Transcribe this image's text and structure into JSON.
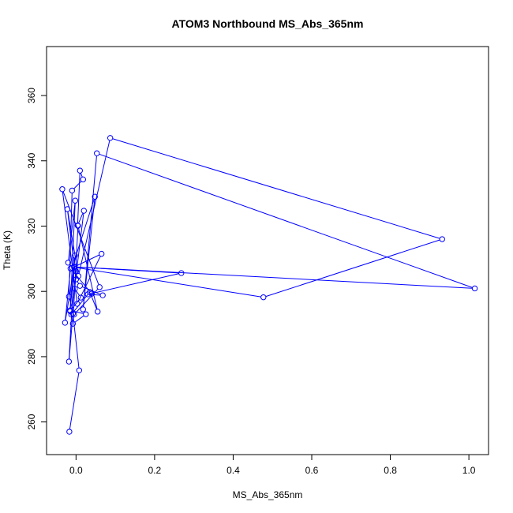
{
  "chart_data": {
    "type": "line",
    "title": "ATOM3 Northbound MS_Abs_365nm",
    "xlabel": "MS_Abs_365nm",
    "ylabel": "Theta (K)",
    "xlim": [
      -0.075,
      1.05
    ],
    "ylim": [
      250,
      375
    ],
    "xticks": [
      0.0,
      0.2,
      0.4,
      0.6,
      0.8,
      1.0
    ],
    "xtick_labels": [
      "0.0",
      "0.2",
      "0.4",
      "0.6",
      "0.8",
      "1.0"
    ],
    "yticks": [
      260,
      280,
      300,
      320,
      340,
      360
    ],
    "ytick_labels": [
      "260",
      "280",
      "300",
      "320",
      "340",
      "360"
    ],
    "grid": false,
    "marker": "open-circle",
    "series_color": "#0000ff",
    "series": [
      {
        "x": [
          -0.017,
          0.008,
          -0.008,
          -0.018,
          -0.003,
          -0.015,
          0.012,
          -0.003,
          0.0,
          -0.02,
          -0.002,
          -0.015,
          0.025,
          -0.008,
          0.005,
          0.055,
          0.035,
          -0.012,
          0.02,
          0.004,
          0.01,
          0.018,
          -0.01,
          -0.018,
          -0.005,
          0.06,
          -0.035,
          0.003,
          0.065,
          -0.01,
          0.048,
          0.018,
          0.053,
          1.015,
          -0.004,
          0.268,
          0.03,
          0.068,
          0.01,
          0.0,
          -0.022,
          0.006,
          0.087,
          0.932,
          0.477,
          -0.005,
          -0.028,
          -0.014,
          0.04
        ],
        "y": [
          257.0,
          275.8,
          293.2,
          278.5,
          311.0,
          293.9,
          298.1,
          300.8,
          306.2,
          308.8,
          327.8,
          294.2,
          293.0,
          290.1,
          320.1,
          293.8,
          299.8,
          292.9,
          324.7,
          320.2,
          337.0,
          334.3,
          330.9,
          298.4,
          292.9,
          301.3,
          331.3,
          296.2,
          311.5,
          307.2,
          329.0,
          294.5,
          342.3,
          300.9,
          307.5,
          305.6,
          299.1,
          298.8,
          301.7,
          303.7,
          325.2,
          304.7,
          347.0,
          316.0,
          298.2,
          307.4,
          290.4,
          307.0,
          299.3
        ]
      }
    ]
  }
}
